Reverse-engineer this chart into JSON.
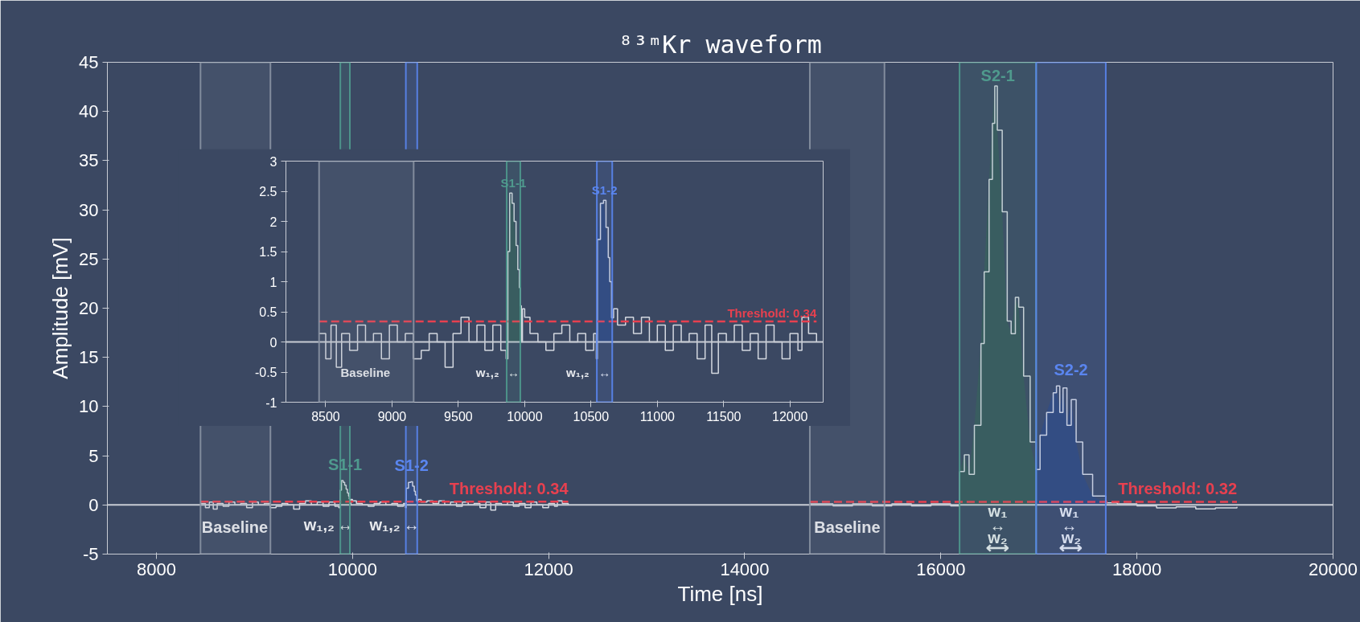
{
  "chart_data": [
    {
      "type": "step",
      "title": "⁸³ᵐKr waveform",
      "xlabel": "Time [ns]",
      "ylabel": "Amplitude [mV]",
      "xlim": [
        7500,
        20000
      ],
      "ylim": [
        -5,
        45
      ],
      "xticks": [
        8000,
        10000,
        12000,
        14000,
        16000,
        18000,
        20000
      ],
      "yticks": [
        -5,
        0,
        5,
        10,
        15,
        20,
        25,
        30,
        35,
        40,
        45
      ],
      "series": [
        {
          "type": "area",
          "color": "#36565a",
          "x": [
            9873,
            9887,
            9905,
            9920,
            9935,
            9948,
            9960,
            9967
          ],
          "values": [
            1.5,
            2.47,
            2.3,
            2.0,
            1.6,
            1.2,
            0.9,
            0.6
          ]
        },
        {
          "type": "area",
          "color": "#2e4678",
          "x": [
            10548,
            10571,
            10594,
            10613,
            10630,
            10641,
            10655
          ],
          "values": [
            1.7,
            2.3,
            2.35,
            1.9,
            1.4,
            1.0,
            0.4
          ]
        },
        {
          "type": "area",
          "color": "#36565a",
          "x": [
            16191,
            16240,
            16288,
            16342,
            16409,
            16442,
            16492,
            16526,
            16550,
            16576,
            16626,
            16677,
            16717,
            16760,
            16794,
            16844,
            16911,
            16972
          ],
          "values": [
            3.4,
            5.1,
            3.1,
            8.1,
            16.4,
            23.7,
            33.1,
            38.8,
            42.6,
            38.1,
            29.8,
            18.7,
            17.4,
            21.1,
            20.1,
            13.1,
            6.4,
            3.6
          ]
        },
        {
          "type": "area",
          "color": "#2e4678",
          "x": [
            16972,
            17012,
            17079,
            17146,
            17179,
            17213,
            17246,
            17286,
            17330,
            17380,
            17447,
            17548,
            17682
          ],
          "values": [
            3.6,
            7.1,
            9.4,
            11.4,
            12.1,
            9.4,
            11.9,
            8.1,
            10.7,
            6.4,
            3.1,
            0.9,
            0.2
          ]
        },
        {
          "color": "#d4d8e0",
          "x": [
            8450,
            8500,
            8540,
            8580,
            8620,
            8680,
            8740,
            8800,
            8860,
            8920,
            8980,
            9040,
            9100,
            9160,
            9220,
            9280,
            9340,
            9400,
            9460,
            9520,
            9580,
            9640,
            9700,
            9760,
            9820,
            9860,
            9873,
            9887,
            9905,
            9920,
            9935,
            9948,
            9960,
            9967,
            9975,
            9983,
            10000,
            10040,
            10100,
            10160,
            10220,
            10280,
            10340,
            10400,
            10460,
            10520,
            10540,
            10548,
            10571,
            10594,
            10613,
            10630,
            10641,
            10655,
            10670,
            10700,
            10760,
            10820,
            10880,
            10940,
            11000,
            11060,
            11120,
            11180,
            11240,
            11300,
            11360,
            11410,
            11460,
            11520,
            11580,
            11640,
            11700,
            11760,
            11820,
            11880,
            11940,
            12000,
            12060,
            12090,
            12140,
            12200,
            13400,
            14664,
            14900,
            15100,
            15300,
            15500,
            15700,
            15900,
            16100,
            16191,
            16240,
            16288,
            16342,
            16409,
            16442,
            16492,
            16526,
            16550,
            16576,
            16626,
            16677,
            16717,
            16760,
            16794,
            16844,
            16911,
            16972,
            17012,
            17079,
            17146,
            17179,
            17213,
            17246,
            17286,
            17330,
            17380,
            17447,
            17548,
            17682,
            17800,
            18000,
            18200,
            18400,
            18600,
            18800,
            19020
          ],
          "values": [
            0.14,
            -0.28,
            0.28,
            -0.42,
            0.14,
            -0.14,
            0.28,
            0,
            0.14,
            -0.28,
            0.28,
            0,
            0.14,
            -0.28,
            -0.14,
            0.14,
            0,
            -0.42,
            0.14,
            0.41,
            0,
            0.28,
            -0.14,
            0.28,
            -0.14,
            -0.28,
            1.5,
            2.47,
            2.3,
            2.0,
            1.6,
            1.2,
            0.9,
            0.6,
            0,
            0.55,
            0.41,
            0.14,
            0,
            -0.14,
            0.14,
            0.28,
            0,
            0.14,
            -0.14,
            0.14,
            -0.28,
            1.7,
            2.3,
            2.35,
            1.9,
            1.4,
            1.0,
            0.4,
            0.55,
            0.28,
            0.41,
            0.14,
            0.41,
            0,
            0.28,
            -0.14,
            0.28,
            0,
            0.14,
            -0.28,
            0.28,
            -0.52,
            0.14,
            0,
            0.28,
            -0.14,
            0.14,
            -0.28,
            0.28,
            0,
            -0.28,
            0.14,
            -0.14,
            0.41,
            0.14,
            0,
            null,
            0.1,
            -0.1,
            0.1,
            -0.1,
            0.1,
            -0.1,
            0.1,
            -0.1,
            3.4,
            5.1,
            3.1,
            8.1,
            16.4,
            23.7,
            33.1,
            38.8,
            42.6,
            38.1,
            29.8,
            18.7,
            17.4,
            21.1,
            20.1,
            13.1,
            6.4,
            3.6,
            7.1,
            9.4,
            11.4,
            12.1,
            9.4,
            11.9,
            8.1,
            10.7,
            6.4,
            3.1,
            0.9,
            0.2,
            0.1,
            -0.1,
            -0.3,
            -0.2,
            -0.4,
            -0.3,
            -0.2
          ]
        },
        {
          "type": "line",
          "name": "Threshold: 0.34",
          "color": "#e8404f",
          "line_style": "dashed",
          "x": [
            8450,
            12200
          ],
          "values": [
            0.34,
            0.34
          ]
        },
        {
          "type": "line",
          "name": "Threshold: 0.32",
          "color": "#e8404f",
          "line_style": "dashed",
          "x": [
            14664,
            19020
          ],
          "values": [
            0.32,
            0.32
          ]
        }
      ],
      "ref_lines": [
        {
          "axis": "y",
          "value": 0,
          "color": "#c8ccd4"
        }
      ],
      "bands": [
        {
          "axis": "x",
          "from": 8450,
          "to": 9163,
          "color": "#8a93a3"
        },
        {
          "axis": "x",
          "from": 14664,
          "to": 15425,
          "color": "#8a93a3"
        },
        {
          "axis": "x",
          "from": 9876,
          "to": 9973,
          "label": "S1-1",
          "color": "#4f9a8e"
        },
        {
          "axis": "x",
          "from": 10544,
          "to": 10660,
          "label": "S1-2",
          "color": "#5a86f0"
        },
        {
          "axis": "x",
          "from": 16191,
          "to": 16972,
          "label": "S2-1",
          "color": "#4f9a8e"
        },
        {
          "axis": "x",
          "from": 16972,
          "to": 17682,
          "label": "S2-2",
          "color": "#5a86f0"
        }
      ],
      "annotations": [
        "Baseline",
        "Baseline",
        "w₁,₂",
        "↔",
        "w₁,₂",
        "↔",
        "w₁",
        "↔",
        "w₂",
        "⟷",
        "w₁",
        "↔",
        "w₂",
        "⟷"
      ]
    },
    {
      "type": "step",
      "xlim": [
        8200,
        12250
      ],
      "ylim": [
        -1,
        3
      ],
      "xticks": [
        8500,
        9000,
        9500,
        10000,
        10500,
        11000,
        11500,
        12000
      ],
      "yticks": [
        -1,
        -0.5,
        0,
        0.5,
        1,
        1.5,
        2,
        2.5,
        3
      ],
      "series": [
        {
          "type": "area",
          "color": "#36565a",
          "x": [
            9873,
            9887,
            9905,
            9920,
            9935,
            9948,
            9960,
            9967
          ],
          "values": [
            1.5,
            2.47,
            2.3,
            2.0,
            1.6,
            1.2,
            0.9,
            0.6
          ]
        },
        {
          "type": "area",
          "color": "#2e4678",
          "x": [
            10548,
            10571,
            10594,
            10613,
            10630,
            10641,
            10655
          ],
          "values": [
            1.7,
            2.3,
            2.35,
            1.9,
            1.4,
            1.0,
            0.4
          ]
        },
        {
          "color": "#d4d8e0",
          "x": [
            8450,
            8500,
            8540,
            8580,
            8620,
            8680,
            8740,
            8800,
            8860,
            8920,
            8980,
            9040,
            9100,
            9160,
            9220,
            9280,
            9340,
            9400,
            9460,
            9520,
            9580,
            9640,
            9700,
            9760,
            9820,
            9860,
            9873,
            9887,
            9905,
            9920,
            9935,
            9948,
            9960,
            9967,
            9975,
            9983,
            10000,
            10040,
            10100,
            10160,
            10220,
            10280,
            10340,
            10400,
            10460,
            10520,
            10540,
            10548,
            10571,
            10594,
            10613,
            10630,
            10641,
            10655,
            10670,
            10700,
            10760,
            10820,
            10880,
            10940,
            11000,
            11060,
            11120,
            11180,
            11240,
            11300,
            11360,
            11410,
            11460,
            11520,
            11580,
            11640,
            11700,
            11760,
            11820,
            11880,
            11940,
            12000,
            12060,
            12090,
            12140,
            12200
          ],
          "values": [
            0.14,
            -0.28,
            0.28,
            -0.42,
            0.14,
            -0.14,
            0.28,
            0,
            0.14,
            -0.28,
            0.28,
            0,
            0.14,
            -0.28,
            -0.14,
            0.14,
            0,
            -0.42,
            0.14,
            0.41,
            0,
            0.28,
            -0.14,
            0.28,
            -0.14,
            -0.28,
            1.5,
            2.47,
            2.3,
            2.0,
            1.6,
            1.2,
            0.9,
            0.6,
            0,
            0.55,
            0.41,
            0.14,
            0,
            -0.14,
            0.14,
            0.28,
            0,
            0.14,
            -0.14,
            0.14,
            -0.28,
            1.7,
            2.3,
            2.35,
            1.9,
            1.4,
            1.0,
            0.4,
            0.55,
            0.28,
            0.41,
            0.14,
            0.41,
            0,
            0.28,
            -0.14,
            0.28,
            0,
            0.14,
            -0.28,
            0.28,
            -0.52,
            0.14,
            0,
            0.28,
            -0.14,
            0.14,
            -0.28,
            0.28,
            0,
            -0.28,
            0.14,
            -0.14,
            0.41,
            0.14,
            0
          ]
        },
        {
          "type": "line",
          "name": "Threshold: 0.34",
          "color": "#e8404f",
          "line_style": "dashed",
          "x": [
            8450,
            12200
          ],
          "values": [
            0.34,
            0.34
          ]
        }
      ],
      "ref_lines": [
        {
          "axis": "y",
          "value": 0,
          "color": "#c8ccd4"
        }
      ],
      "bands": [
        {
          "axis": "x",
          "from": 8450,
          "to": 9163,
          "color": "#8a93a3"
        },
        {
          "axis": "x",
          "from": 9864,
          "to": 9967,
          "label": "S1-1",
          "color": "#4f9a8e"
        },
        {
          "axis": "x",
          "from": 10544,
          "to": 10660,
          "label": "S1-2",
          "color": "#5a86f0"
        }
      ],
      "annotations": [
        "Baseline",
        "w₁,₂",
        "↔",
        "w₁,₂",
        "↔"
      ]
    }
  ]
}
